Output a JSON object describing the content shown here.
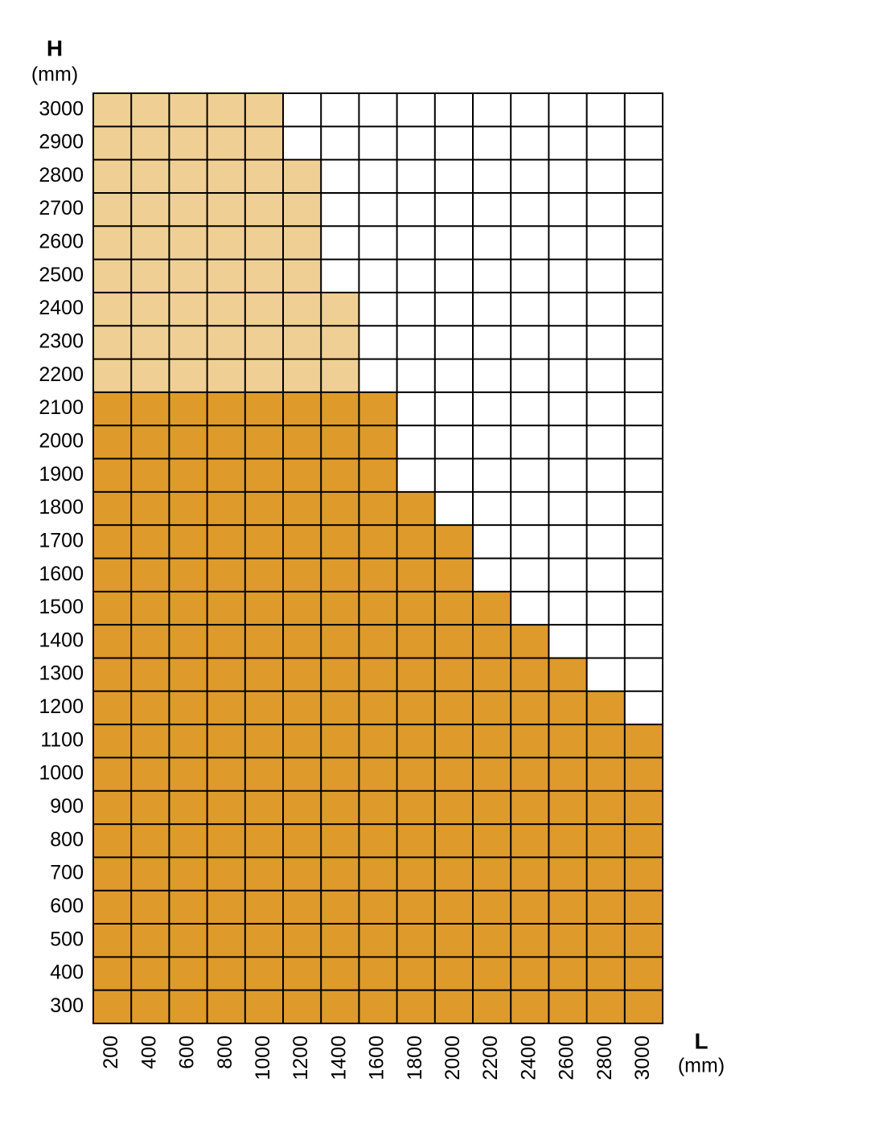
{
  "chart_data": {
    "type": "grid",
    "y_label": "H",
    "y_unit": "(mm)",
    "x_label": "L",
    "x_unit": "(mm)",
    "x": [
      200,
      400,
      600,
      800,
      1000,
      1200,
      1400,
      1600,
      1800,
      2000,
      2200,
      2400,
      2600,
      2800,
      3000
    ],
    "xlim": [
      100,
      3100
    ],
    "xticks": [
      200,
      400,
      600,
      800,
      1000,
      1200,
      1400,
      1600,
      1800,
      2000,
      2200,
      2400,
      2600,
      2800,
      3000
    ],
    "ylim": [
      250,
      3050
    ],
    "yticks": [
      300,
      400,
      500,
      600,
      700,
      800,
      900,
      1000,
      1100,
      1200,
      1300,
      1400,
      1500,
      1600,
      1700,
      1800,
      1900,
      2000,
      2100,
      2200,
      2300,
      2400,
      2500,
      2600,
      2700,
      2800,
      2900,
      3000
    ],
    "series": [
      {
        "color": "#f0cf94",
        "values": [
          3000,
          3000,
          3000,
          3000,
          3000,
          2800,
          2400,
          null,
          null,
          null,
          null,
          null,
          null,
          null,
          null
        ]
      },
      {
        "color": "#de9a2a",
        "values": [
          2100,
          2100,
          2100,
          2100,
          2100,
          2100,
          2100,
          2100,
          1800,
          1700,
          1500,
          1400,
          1300,
          1200,
          1100
        ]
      }
    ],
    "grid": true
  }
}
